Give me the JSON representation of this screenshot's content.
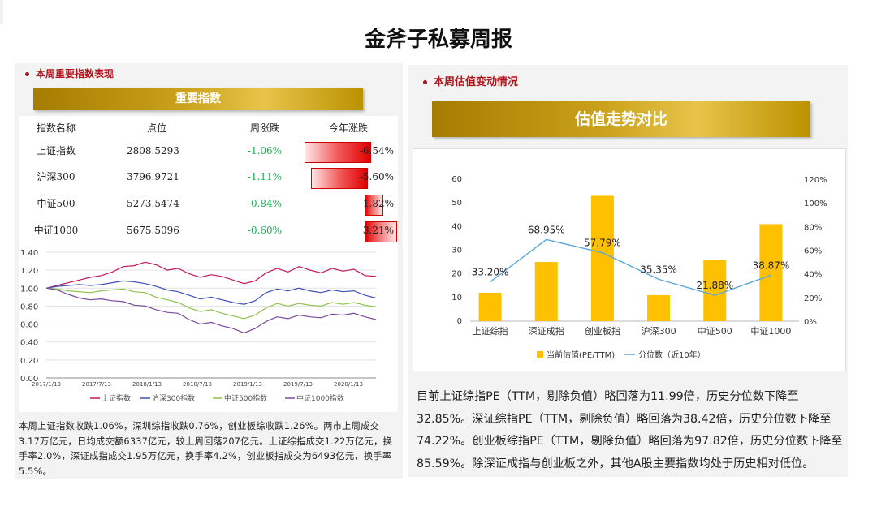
{
  "title": "金斧子私募周报",
  "left": {
    "section_title": "本周重要指数表现",
    "banner": "重要指数",
    "table": {
      "headers": [
        "指数名称",
        "点位",
        "周涨跌",
        "今年涨跌"
      ],
      "rows": [
        {
          "name": "上证指数",
          "point": "2808.5293",
          "week": "-1.06%",
          "ytd": "-6.54%",
          "ytd_value": -6.54
        },
        {
          "name": "沪深300",
          "point": "3796.9721",
          "week": "-1.11%",
          "ytd": "-5.60%",
          "ytd_value": -5.6
        },
        {
          "name": "中证500",
          "point": "5273.5474",
          "week": "-0.84%",
          "ytd": "1.82%",
          "ytd_value": 1.82
        },
        {
          "name": "中证1000",
          "point": "5675.5096",
          "week": "-0.60%",
          "ytd": "3.21%",
          "ytd_value": 3.21
        }
      ]
    },
    "colors": {
      "up": "#e10000",
      "down": "#1aaa50",
      "accent": "#b0141b"
    },
    "summary": "本周上证指数收跌1.06%，深圳综指收跌0.76%，创业板综收跌1.26%。两市上周成交3.17万亿元，日均成交额6337亿元，较上周回落207亿元。上证综指成交1.22万亿元，换手率2.0%，深证成指成交1.95万亿元，换手率4.2%，创业板指成交为6493亿元，换手率5.5%。"
  },
  "right": {
    "section_title": "本周估值变动情况",
    "banner": "估值走势对比",
    "summary": "目前上证综指PE（TTM，剔除负值）略回落为11.99倍，历史分位数下降至32.85%。深证综指PE（TTM，剔除负值）略回落为38.42倍，历史分位数下降至74.22%。创业板综指PE（TTM，剔除负值）略回落为97.82倍，历史分位数下降至85.59%。除深证成指与创业板之外，其他A股主要指数均处于历史相对低位。"
  },
  "chart_data": [
    {
      "type": "line",
      "x_ticks": [
        "2017/1/13",
        "2017/7/13",
        "2018/1/13",
        "2018/7/13",
        "2019/1/13",
        "2019/7/13",
        "2020/1/13"
      ],
      "y_ticks": [
        "0.00",
        "0.20",
        "0.40",
        "0.60",
        "0.80",
        "1.00",
        "1.20",
        "1.40"
      ],
      "ylim": [
        0,
        1.4
      ],
      "series": [
        {
          "name": "上证指数",
          "color": "#c2185b",
          "values": [
            1.0,
            1.03,
            1.06,
            1.09,
            1.12,
            1.14,
            1.18,
            1.24,
            1.25,
            1.29,
            1.26,
            1.2,
            1.22,
            1.16,
            1.12,
            1.15,
            1.13,
            1.09,
            1.05,
            1.08,
            1.17,
            1.22,
            1.18,
            1.24,
            1.2,
            1.17,
            1.22,
            1.19,
            1.21,
            1.14,
            1.13
          ]
        },
        {
          "name": "沪深300指数",
          "color": "#3f51b5",
          "values": [
            1.0,
            1.02,
            1.03,
            1.04,
            1.03,
            1.04,
            1.06,
            1.08,
            1.07,
            1.05,
            1.02,
            0.98,
            0.96,
            0.92,
            0.88,
            0.9,
            0.87,
            0.84,
            0.82,
            0.86,
            0.95,
            0.99,
            0.97,
            1.0,
            0.97,
            0.95,
            0.98,
            0.96,
            0.97,
            0.92,
            0.89
          ]
        },
        {
          "name": "中证500指数",
          "color": "#8bc34a",
          "values": [
            1.0,
            0.99,
            0.97,
            0.96,
            0.95,
            0.97,
            0.98,
            0.99,
            0.96,
            0.95,
            0.9,
            0.87,
            0.84,
            0.78,
            0.74,
            0.76,
            0.72,
            0.69,
            0.66,
            0.7,
            0.78,
            0.83,
            0.8,
            0.83,
            0.81,
            0.8,
            0.84,
            0.82,
            0.84,
            0.81,
            0.79
          ]
        },
        {
          "name": "中证1000指数",
          "color": "#7b4aa0",
          "values": [
            1.0,
            0.98,
            0.93,
            0.89,
            0.87,
            0.88,
            0.86,
            0.85,
            0.81,
            0.8,
            0.76,
            0.73,
            0.72,
            0.65,
            0.6,
            0.62,
            0.58,
            0.55,
            0.5,
            0.55,
            0.63,
            0.68,
            0.66,
            0.7,
            0.68,
            0.67,
            0.71,
            0.7,
            0.72,
            0.68,
            0.65
          ]
        }
      ]
    },
    {
      "type": "bar",
      "categories": [
        "上证综指",
        "深证成指",
        "创业板指",
        "沪深300",
        "中证500",
        "中证1000"
      ],
      "series": [
        {
          "name": "当前估值(PE/TTM)",
          "color": "#ffc000",
          "axis": "left",
          "values": [
            12,
            25,
            53,
            11,
            26,
            41
          ]
        },
        {
          "name": "分位数（近10年）",
          "color": "#5aa9d8",
          "axis": "right",
          "values": [
            33.2,
            68.95,
            57.79,
            35.35,
            21.88,
            38.87
          ],
          "labels": [
            "33.20%",
            "68.95%",
            "57.79%",
            "35.35%",
            "21.88%",
            "38.87%"
          ]
        }
      ],
      "left_ticks": [
        "0",
        "10",
        "20",
        "30",
        "40",
        "50",
        "60"
      ],
      "right_ticks": [
        "0%",
        "20%",
        "40%",
        "60%",
        "80%",
        "100%",
        "120%"
      ],
      "ylim": [
        0,
        60
      ],
      "y2lim": [
        0,
        120
      ],
      "legend": "bottom"
    }
  ]
}
